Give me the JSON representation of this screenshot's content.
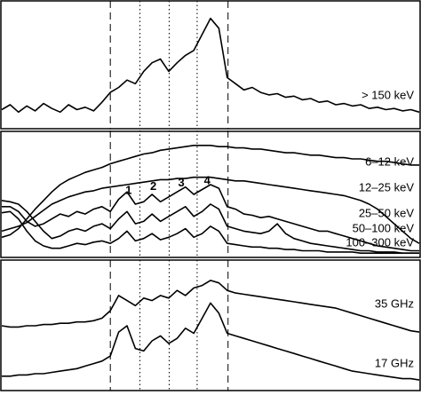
{
  "chart_data": [
    {
      "type": "line",
      "xlim": [
        0,
        100
      ],
      "ylim": [
        0,
        100
      ],
      "x": [
        0,
        2,
        4,
        6,
        8,
        10,
        12,
        14,
        16,
        18,
        20,
        22,
        24,
        26,
        28,
        30,
        32,
        34,
        36,
        38,
        40,
        42,
        44,
        46,
        48,
        50,
        52,
        54,
        56,
        58,
        60,
        62,
        64,
        66,
        68,
        70,
        72,
        74,
        76,
        78,
        80,
        82,
        84,
        86,
        88,
        90,
        92,
        94,
        96,
        98,
        100
      ],
      "vlines": [
        {
          "x": 26,
          "style": "dashed"
        },
        {
          "x": 33.1,
          "style": "dotted"
        },
        {
          "x": 40.1,
          "style": "dotted"
        },
        {
          "x": 46.8,
          "style": "dotted"
        },
        {
          "x": 54.2,
          "style": "dashed"
        }
      ],
      "series": [
        {
          "name": "> 150 keV",
          "color": "#000000",
          "values": [
            14,
            18,
            12,
            17,
            13,
            19,
            15,
            12,
            18,
            14,
            16,
            13,
            20,
            28,
            32,
            38,
            35,
            45,
            52,
            55,
            45,
            52,
            58,
            62,
            75,
            88,
            80,
            40,
            35,
            30,
            32,
            28,
            26,
            27,
            24,
            25,
            22,
            23,
            20,
            21,
            18,
            19,
            17,
            18,
            15,
            16,
            14,
            15,
            13,
            14,
            12
          ]
        }
      ]
    },
    {
      "type": "line",
      "xlim": [
        0,
        100
      ],
      "ylim": [
        0,
        100
      ],
      "x": [
        0,
        2,
        4,
        6,
        8,
        10,
        12,
        14,
        16,
        18,
        20,
        22,
        24,
        26,
        28,
        30,
        32,
        34,
        36,
        38,
        40,
        42,
        44,
        46,
        48,
        50,
        52,
        54,
        56,
        58,
        60,
        62,
        64,
        66,
        68,
        70,
        72,
        74,
        76,
        78,
        80,
        82,
        84,
        86,
        88,
        90,
        92,
        94,
        96,
        98,
        100
      ],
      "vlines": [
        {
          "x": 26,
          "style": "dashed"
        },
        {
          "x": 33.1,
          "style": "dotted"
        },
        {
          "x": 40.1,
          "style": "dotted"
        },
        {
          "x": 46.8,
          "style": "dotted"
        },
        {
          "x": 54.2,
          "style": "dashed"
        }
      ],
      "annotations": [
        {
          "text": "1",
          "x": 30.4,
          "y": 53
        },
        {
          "text": "2",
          "x": 36.3,
          "y": 56
        },
        {
          "text": "3",
          "x": 43,
          "y": 59
        },
        {
          "text": "4",
          "x": 49.2,
          "y": 61
        }
      ],
      "series": [
        {
          "name": "6–12 keV",
          "color": "#000000",
          "values": [
            15,
            17,
            22,
            30,
            38,
            45,
            52,
            58,
            62,
            65,
            68,
            70,
            72,
            75,
            77,
            79,
            81,
            83,
            84,
            86,
            87,
            88,
            89,
            90,
            90,
            90,
            89,
            89,
            88,
            88,
            87,
            87,
            86,
            85,
            84,
            84,
            83,
            82,
            82,
            81,
            80,
            80,
            79,
            79,
            78,
            77,
            77,
            76,
            75,
            74,
            74
          ]
        },
        {
          "name": "12–25 keV",
          "color": "#000000",
          "values": [
            20,
            22,
            24,
            27,
            32,
            37,
            42,
            45,
            48,
            50,
            52,
            53,
            55,
            56,
            57,
            58,
            59,
            60,
            61,
            62,
            62,
            63,
            63,
            64,
            64,
            64,
            63,
            62,
            61,
            61,
            60,
            59,
            58,
            57,
            56,
            55,
            54,
            53,
            52,
            51,
            50,
            49,
            47,
            45,
            42,
            38,
            32,
            26,
            20,
            14,
            10
          ]
        },
        {
          "name": "25–50 keV",
          "color": "#000000",
          "values": [
            40,
            40,
            36,
            28,
            24,
            26,
            30,
            34,
            32,
            36,
            34,
            38,
            40,
            36,
            46,
            52,
            42,
            44,
            50,
            44,
            48,
            52,
            56,
            50,
            54,
            58,
            55,
            40,
            38,
            34,
            33,
            31,
            32,
            30,
            28,
            26,
            24,
            22,
            20,
            20,
            18,
            16,
            14,
            12,
            10,
            8,
            7,
            6,
            5,
            4,
            4
          ]
        },
        {
          "name": "50–100 keV",
          "color": "#000000",
          "values": [
            45,
            44,
            42,
            36,
            28,
            20,
            14,
            16,
            20,
            22,
            20,
            24,
            26,
            22,
            30,
            36,
            26,
            28,
            34,
            28,
            32,
            36,
            40,
            32,
            36,
            42,
            38,
            24,
            22,
            20,
            19,
            18,
            20,
            26,
            18,
            14,
            12,
            10,
            9,
            8,
            7,
            6,
            5,
            4,
            4,
            3,
            3,
            3,
            2,
            2,
            2
          ]
        },
        {
          "name": "100–300 keV",
          "color": "#000000",
          "values": [
            35,
            36,
            30,
            20,
            12,
            8,
            6,
            6,
            8,
            10,
            9,
            11,
            12,
            10,
            14,
            20,
            12,
            14,
            18,
            13,
            15,
            18,
            22,
            15,
            18,
            24,
            20,
            10,
            9,
            8,
            7,
            7,
            6,
            6,
            5,
            5,
            4,
            4,
            4,
            3,
            3,
            3,
            3,
            2,
            2,
            2,
            2,
            2,
            2,
            2,
            2
          ]
        }
      ]
    },
    {
      "type": "line",
      "xlim": [
        0,
        100
      ],
      "ylim": [
        0,
        100
      ],
      "x": [
        0,
        2,
        4,
        6,
        8,
        10,
        12,
        14,
        16,
        18,
        20,
        22,
        24,
        26,
        28,
        30,
        32,
        34,
        36,
        38,
        40,
        42,
        44,
        46,
        48,
        50,
        52,
        54,
        56,
        58,
        60,
        62,
        64,
        66,
        68,
        70,
        72,
        74,
        76,
        78,
        80,
        82,
        84,
        86,
        88,
        90,
        92,
        94,
        96,
        98,
        100
      ],
      "vlines": [
        {
          "x": 26,
          "style": "dashed"
        },
        {
          "x": 33.1,
          "style": "dotted"
        },
        {
          "x": 40.1,
          "style": "dotted"
        },
        {
          "x": 46.8,
          "style": "dotted"
        },
        {
          "x": 54.2,
          "style": "dashed"
        }
      ],
      "series": [
        {
          "name": "35 GHz",
          "color": "#000000",
          "values": [
            50,
            49,
            49,
            50,
            50,
            51,
            51,
            52,
            52,
            53,
            53,
            54,
            56,
            62,
            74,
            70,
            66,
            72,
            70,
            74,
            72,
            78,
            74,
            80,
            82,
            86,
            84,
            78,
            76,
            75,
            74,
            73,
            72,
            71,
            70,
            69,
            68,
            67,
            66,
            65,
            64,
            62,
            60,
            58,
            56,
            54,
            52,
            50,
            48,
            46,
            45
          ]
        },
        {
          "name": "17 GHz",
          "color": "#000000",
          "values": [
            10,
            10,
            11,
            11,
            12,
            12,
            13,
            14,
            15,
            16,
            18,
            20,
            22,
            26,
            45,
            50,
            32,
            30,
            38,
            42,
            36,
            40,
            48,
            44,
            56,
            68,
            60,
            44,
            42,
            40,
            38,
            36,
            34,
            32,
            30,
            28,
            26,
            24,
            22,
            20,
            18,
            16,
            14,
            13,
            12,
            11,
            10,
            9,
            8,
            8,
            7
          ]
        }
      ]
    }
  ]
}
